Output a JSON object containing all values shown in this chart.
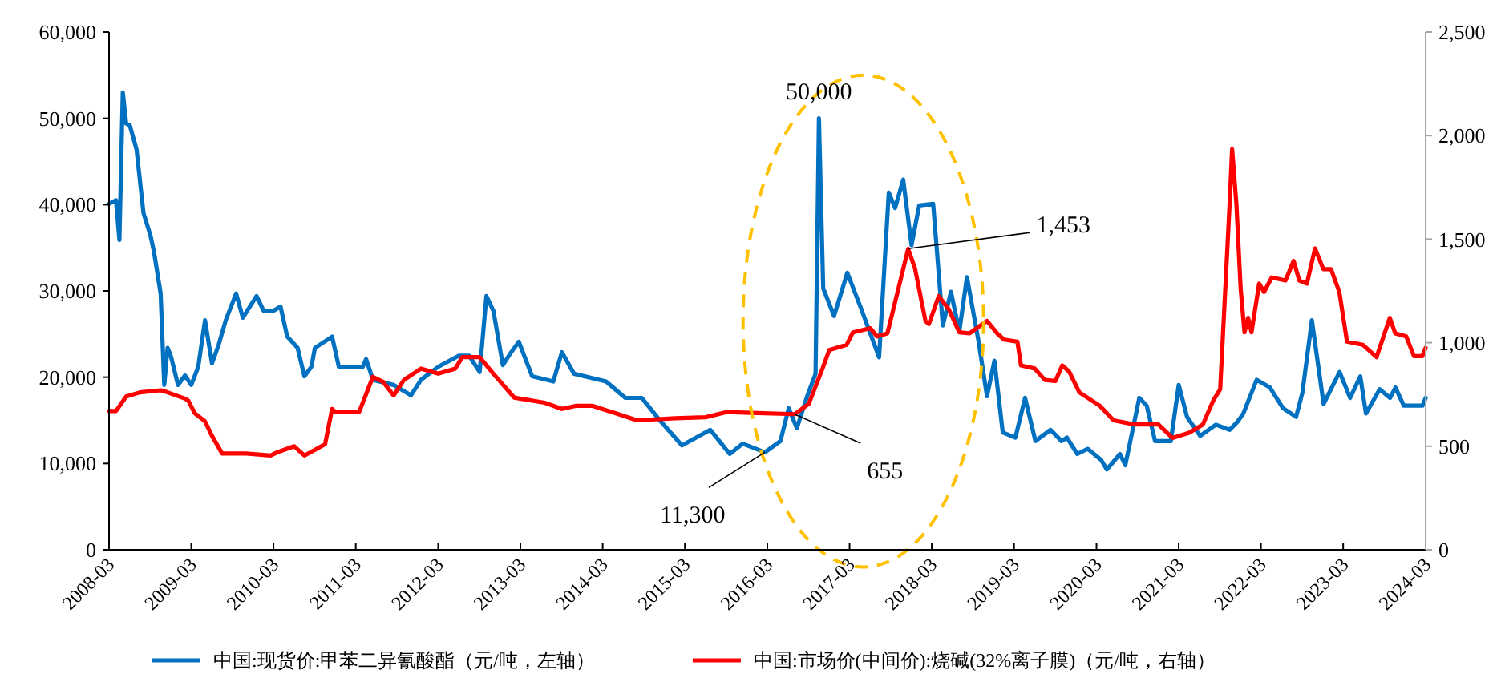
{
  "chart_data": {
    "type": "line",
    "xlim": [
      "2008-03-01",
      "2024-03-01"
    ],
    "xticks": [
      "2008-03",
      "2009-03",
      "2010-03",
      "2011-03",
      "2012-03",
      "2013-03",
      "2014-03",
      "2015-03",
      "2016-03",
      "2017-03",
      "2018-03",
      "2019-03",
      "2020-03",
      "2021-03",
      "2022-03",
      "2023-03",
      "2024-03"
    ],
    "ylim": [
      0,
      60000
    ],
    "yticks": [
      {
        "value": 0,
        "label": "0"
      },
      {
        "value": 10000,
        "label": "10,000"
      },
      {
        "value": 20000,
        "label": "20,000"
      },
      {
        "value": 30000,
        "label": "30,000"
      },
      {
        "value": 40000,
        "label": "40,000"
      },
      {
        "value": 50000,
        "label": "50,000"
      },
      {
        "value": 60000,
        "label": "60,000"
      }
    ],
    "y2lim": [
      0,
      2500
    ],
    "y2ticks": [
      {
        "value": 0,
        "label": "0"
      },
      {
        "value": 500,
        "label": "500"
      },
      {
        "value": 1000,
        "label": "1,000"
      },
      {
        "value": 1500,
        "label": "1,500"
      },
      {
        "value": 2000,
        "label": "2,000"
      },
      {
        "value": 2500,
        "label": "2,500"
      }
    ],
    "grid": false,
    "legend": "bottom",
    "marker": "none",
    "line_style": "solid",
    "series": [
      {
        "name": "中国:现货价:甲苯二异氰酸酯（元/吨，左轴）",
        "color": "#0070c0",
        "x": [
          "2008-03-01",
          "2008-04-01",
          "2008-04-16",
          "2008-05-01",
          "2008-05-16",
          "2008-06-01",
          "2008-07-01",
          "2008-08-01",
          "2008-09-01",
          "2008-09-16",
          "2008-10-16",
          "2008-11-01",
          "2008-11-16",
          "2008-12-01",
          "2009-01-01",
          "2009-02-01",
          "2009-03-01",
          "2009-04-01",
          "2009-05-01",
          "2009-06-01",
          "2009-07-01",
          "2009-08-01",
          "2009-09-16",
          "2009-10-16",
          "2009-12-16",
          "2010-01-16",
          "2010-03-01",
          "2010-04-01",
          "2010-05-01",
          "2010-06-16",
          "2010-07-16",
          "2010-08-16",
          "2010-09-01",
          "2010-11-16",
          "2010-12-16",
          "2011-04-01",
          "2011-04-16",
          "2011-05-16",
          "2011-08-16",
          "2011-11-01",
          "2011-12-16",
          "2012-03-01",
          "2012-06-01",
          "2012-07-16",
          "2012-09-01",
          "2012-10-01",
          "2012-11-01",
          "2012-12-13",
          "2013-01-19",
          "2013-02-22",
          "2013-04-22",
          "2013-07-25",
          "2013-09-01",
          "2013-10-25",
          "2014-03-16",
          "2014-06-10",
          "2014-08-22",
          "2014-11-13",
          "2015-02-16",
          "2015-06-22",
          "2015-09-16",
          "2015-11-13",
          "2016-02-19",
          "2016-04-28",
          "2016-06-04",
          "2016-07-10",
          "2016-08-25",
          "2016-10-01",
          "2016-10-16",
          "2016-11-04",
          "2016-12-22",
          "2017-02-19",
          "2017-04-22",
          "2017-07-10",
          "2017-08-22",
          "2017-09-19",
          "2017-10-25",
          "2017-12-01",
          "2018-01-04",
          "2018-03-07",
          "2018-04-19",
          "2018-05-25",
          "2018-07-01",
          "2018-08-04",
          "2018-09-25",
          "2018-11-01",
          "2018-12-04",
          "2019-01-10",
          "2019-03-07",
          "2019-04-19",
          "2019-06-04",
          "2019-08-10",
          "2019-09-28",
          "2019-10-22",
          "2019-12-07",
          "2020-01-22",
          "2020-03-22",
          "2020-04-16",
          "2020-06-13",
          "2020-07-07",
          "2020-09-07",
          "2020-10-10",
          "2020-11-16",
          "2021-01-25",
          "2021-03-01",
          "2021-04-07",
          "2021-06-04",
          "2021-08-13",
          "2021-10-13",
          "2021-11-19",
          "2021-12-13",
          "2022-02-10",
          "2022-04-10",
          "2022-06-07",
          "2022-08-04",
          "2022-09-01",
          "2022-10-13",
          "2022-12-04",
          "2023-02-13",
          "2023-04-01",
          "2023-05-16",
          "2023-06-10",
          "2023-08-10",
          "2023-09-25",
          "2023-10-19",
          "2023-11-25",
          "2024-02-16",
          "2024-03-01"
        ],
        "values": [
          40100,
          40500,
          35900,
          53000,
          49400,
          49200,
          46400,
          39000,
          36400,
          34600,
          29700,
          19100,
          23400,
          22400,
          19100,
          20200,
          19100,
          21200,
          26600,
          21600,
          23800,
          26600,
          29700,
          26900,
          29400,
          27700,
          27700,
          28200,
          24700,
          23400,
          20100,
          21200,
          23400,
          24700,
          21200,
          21200,
          22100,
          19700,
          19100,
          17900,
          19700,
          21200,
          22500,
          22500,
          20600,
          29400,
          27700,
          21400,
          22900,
          24100,
          20100,
          19500,
          22900,
          20400,
          19500,
          17600,
          17600,
          14900,
          12100,
          13900,
          11100,
          12300,
          11300,
          12600,
          16400,
          14100,
          17800,
          20400,
          50000,
          30300,
          27100,
          32100,
          27900,
          22300,
          41400,
          39600,
          42900,
          35300,
          39900,
          40100,
          26000,
          29900,
          25300,
          31600,
          24100,
          17800,
          21900,
          13600,
          13000,
          17600,
          12600,
          13900,
          12600,
          13000,
          11100,
          11700,
          10400,
          9300,
          11100,
          9800,
          17600,
          16700,
          12600,
          12600,
          19100,
          15400,
          13200,
          14500,
          13900,
          14900,
          15800,
          19700,
          18800,
          16400,
          15400,
          18200,
          26600,
          16900,
          20600,
          17600,
          20100,
          15800,
          18600,
          17600,
          18800,
          16700,
          16700,
          17600
        ]
      },
      {
        "name": "中国:市场价(中间价):烧碱(32%离子膜)（元/吨，右轴）",
        "color": "#ff0000",
        "axis": "y2",
        "x": [
          "2008-03-01",
          "2008-04-01",
          "2008-05-16",
          "2008-07-16",
          "2008-10-16",
          "2008-11-16",
          "2009-02-01",
          "2009-02-16",
          "2009-03-16",
          "2009-05-01",
          "2009-06-01",
          "2009-07-16",
          "2009-11-01",
          "2010-02-16",
          "2010-03-16",
          "2010-06-01",
          "2010-07-16",
          "2010-10-16",
          "2010-11-16",
          "2010-12-01",
          "2011-03-16",
          "2011-05-16",
          "2011-07-01",
          "2011-08-16",
          "2011-10-01",
          "2011-12-16",
          "2012-03-01",
          "2012-05-16",
          "2012-06-16",
          "2012-09-01",
          "2012-11-01",
          "2013-02-01",
          "2013-06-16",
          "2013-09-01",
          "2013-11-01",
          "2014-01-16",
          "2014-08-01",
          "2015-01-16",
          "2015-06-01",
          "2015-09-01",
          "2016-01-16",
          "2016-07-01",
          "2016-09-01",
          "2016-11-01",
          "2016-12-01",
          "2017-02-16",
          "2017-03-16",
          "2017-06-01",
          "2017-07-01",
          "2017-08-16",
          "2017-10-16",
          "2017-11-16",
          "2017-12-16",
          "2018-02-01",
          "2018-02-16",
          "2018-04-01",
          "2018-05-16",
          "2018-07-01",
          "2018-08-16",
          "2018-11-01",
          "2018-12-16",
          "2019-01-16",
          "2019-03-16",
          "2019-04-01",
          "2019-06-01",
          "2019-07-16",
          "2019-09-01",
          "2019-10-01",
          "2019-11-01",
          "2019-12-16",
          "2020-03-16",
          "2020-05-16",
          "2020-08-16",
          "2020-12-01",
          "2021-02-01",
          "2021-04-16",
          "2021-06-16",
          "2021-08-01",
          "2021-09-01",
          "2021-10-01",
          "2021-10-12",
          "2021-10-24",
          "2021-11-12",
          "2021-12-01",
          "2021-12-18",
          "2022-01-03",
          "2022-01-18",
          "2022-02-21",
          "2022-03-15",
          "2022-04-18",
          "2022-06-18",
          "2022-07-24",
          "2022-08-18",
          "2022-09-21",
          "2022-10-27",
          "2022-12-03",
          "2023-01-06",
          "2023-02-12",
          "2023-03-18",
          "2023-05-27",
          "2023-07-27",
          "2023-09-24",
          "2023-10-18",
          "2023-12-06",
          "2024-01-09",
          "2024-02-15",
          "2024-03-01"
        ],
        "values": [
          670,
          670,
          740,
          760,
          770,
          760,
          730,
          720,
          660,
          620,
          550,
          465,
          465,
          455,
          470,
          500,
          455,
          510,
          680,
          665,
          665,
          835,
          810,
          745,
          820,
          875,
          850,
          875,
          930,
          930,
          850,
          735,
          710,
          680,
          695,
          695,
          625,
          635,
          640,
          665,
          660,
          655,
          705,
          875,
          965,
          990,
          1050,
          1070,
          1030,
          1045,
          1315,
          1453,
          1360,
          1105,
          1090,
          1225,
          1160,
          1050,
          1045,
          1105,
          1045,
          1015,
          1005,
          890,
          875,
          820,
          815,
          890,
          860,
          760,
          695,
          625,
          605,
          605,
          540,
          565,
          605,
          720,
          775,
          1415,
          1650,
          1935,
          1670,
          1260,
          1050,
          1120,
          1050,
          1285,
          1245,
          1315,
          1300,
          1395,
          1300,
          1285,
          1455,
          1355,
          1355,
          1245,
          1005,
          990,
          930,
          1120,
          1045,
          1030,
          935,
          935,
          975
        ]
      }
    ],
    "annotations": [
      {
        "text": "50,000",
        "x": "2016-10-16",
        "y": 50000
      },
      {
        "text": "11,300",
        "x": "2016-02-19",
        "y": 11300
      },
      {
        "text": "655",
        "x": "2016-07-01",
        "y": 15700
      },
      {
        "text": "1,453",
        "x": "2017-11-16",
        "y": 34900
      }
    ]
  }
}
